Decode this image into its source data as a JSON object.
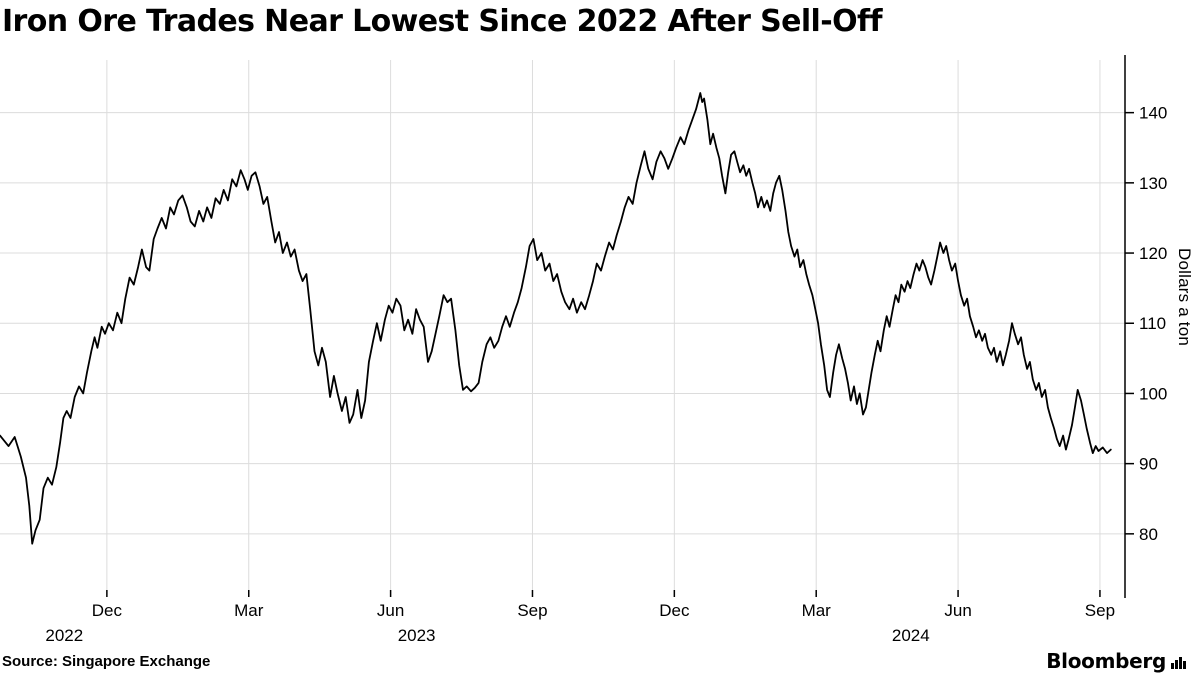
{
  "page": {
    "title": "Iron Ore Trades Near Lowest Since 2022 After Sell-Off",
    "source_label": "Source: Singapore Exchange",
    "brand": "Bloomberg"
  },
  "chart_data": {
    "type": "line",
    "title": "Iron Ore Trades Near Lowest Since 2022 After Sell-Off",
    "ylabel": "Dollars a ton",
    "x_unit": "months since 2022-10-01 (0 = Oct 2022, 23 = Sep 2024)",
    "xlim": [
      -0.26,
      23.53
    ],
    "ylim": [
      72,
      147.5
    ],
    "yticks": [
      80,
      90,
      100,
      110,
      120,
      130,
      140
    ],
    "xticks": [
      {
        "t": 2,
        "label": "Dec"
      },
      {
        "t": 5,
        "label": "Mar"
      },
      {
        "t": 8,
        "label": "Jun"
      },
      {
        "t": 11,
        "label": "Sep"
      },
      {
        "t": 14,
        "label": "Dec"
      },
      {
        "t": 17,
        "label": "Mar"
      },
      {
        "t": 20,
        "label": "Jun"
      },
      {
        "t": 23,
        "label": "Sep"
      }
    ],
    "year_labels": [
      {
        "t": 1.1,
        "label": "2022"
      },
      {
        "t": 8.55,
        "label": "2023"
      },
      {
        "t": 19.0,
        "label": "2024"
      }
    ],
    "grid": true,
    "legend": "none",
    "line_color": "#000000",
    "grid_color": "#dcdcdc",
    "axis_color": "#000000",
    "background": "#ffffff",
    "points": [
      [
        -0.26,
        94
      ],
      [
        -0.08,
        92.5
      ],
      [
        0.05,
        93.8
      ],
      [
        0.18,
        91
      ],
      [
        0.29,
        88
      ],
      [
        0.36,
        84
      ],
      [
        0.42,
        78.6
      ],
      [
        0.49,
        80.5
      ],
      [
        0.58,
        82
      ],
      [
        0.66,
        86.5
      ],
      [
        0.75,
        88
      ],
      [
        0.84,
        87
      ],
      [
        0.93,
        89.5
      ],
      [
        1.01,
        93
      ],
      [
        1.08,
        96.5
      ],
      [
        1.15,
        97.5
      ],
      [
        1.23,
        96.5
      ],
      [
        1.32,
        99.5
      ],
      [
        1.41,
        101
      ],
      [
        1.5,
        100
      ],
      [
        1.58,
        103
      ],
      [
        1.67,
        106
      ],
      [
        1.74,
        108
      ],
      [
        1.8,
        106.5
      ],
      [
        1.89,
        109.5
      ],
      [
        1.96,
        108.5
      ],
      [
        2.04,
        110
      ],
      [
        2.13,
        109
      ],
      [
        2.22,
        111.5
      ],
      [
        2.31,
        110
      ],
      [
        2.39,
        113.5
      ],
      [
        2.48,
        116.5
      ],
      [
        2.57,
        115.5
      ],
      [
        2.66,
        118
      ],
      [
        2.74,
        120.5
      ],
      [
        2.83,
        118
      ],
      [
        2.9,
        117.5
      ],
      [
        2.99,
        122
      ],
      [
        3.07,
        123.5
      ],
      [
        3.16,
        125
      ],
      [
        3.25,
        123.5
      ],
      [
        3.34,
        126.5
      ],
      [
        3.42,
        125.5
      ],
      [
        3.51,
        127.5
      ],
      [
        3.6,
        128.2
      ],
      [
        3.69,
        126.5
      ],
      [
        3.77,
        124.5
      ],
      [
        3.86,
        123.8
      ],
      [
        3.95,
        126
      ],
      [
        4.04,
        124.5
      ],
      [
        4.12,
        126.5
      ],
      [
        4.21,
        125
      ],
      [
        4.3,
        127.8
      ],
      [
        4.39,
        127
      ],
      [
        4.47,
        129
      ],
      [
        4.56,
        127.5
      ],
      [
        4.65,
        130.5
      ],
      [
        4.74,
        129.5
      ],
      [
        4.83,
        131.8
      ],
      [
        4.91,
        130.5
      ],
      [
        4.98,
        129
      ],
      [
        5.06,
        131
      ],
      [
        5.14,
        131.5
      ],
      [
        5.23,
        129.5
      ],
      [
        5.31,
        127
      ],
      [
        5.39,
        128
      ],
      [
        5.48,
        124.5
      ],
      [
        5.56,
        121.5
      ],
      [
        5.64,
        123
      ],
      [
        5.72,
        120
      ],
      [
        5.81,
        121.5
      ],
      [
        5.89,
        119.5
      ],
      [
        5.97,
        120.5
      ],
      [
        6.06,
        117.5
      ],
      [
        6.14,
        116
      ],
      [
        6.22,
        117
      ],
      [
        6.3,
        112
      ],
      [
        6.39,
        106
      ],
      [
        6.47,
        104
      ],
      [
        6.55,
        106.5
      ],
      [
        6.63,
        104.5
      ],
      [
        6.72,
        99.5
      ],
      [
        6.8,
        102.5
      ],
      [
        6.88,
        100
      ],
      [
        6.97,
        97.5
      ],
      [
        7.05,
        99.5
      ],
      [
        7.13,
        95.8
      ],
      [
        7.21,
        97
      ],
      [
        7.3,
        100.5
      ],
      [
        7.38,
        96.5
      ],
      [
        7.46,
        99
      ],
      [
        7.54,
        104.5
      ],
      [
        7.63,
        107.5
      ],
      [
        7.71,
        110
      ],
      [
        7.79,
        107.5
      ],
      [
        7.88,
        110.5
      ],
      [
        7.96,
        112.5
      ],
      [
        8.04,
        111.5
      ],
      [
        8.12,
        113.5
      ],
      [
        8.21,
        112.5
      ],
      [
        8.29,
        109
      ],
      [
        8.37,
        110.5
      ],
      [
        8.46,
        108.5
      ],
      [
        8.54,
        112
      ],
      [
        8.62,
        110.5
      ],
      [
        8.7,
        109.5
      ],
      [
        8.79,
        104.5
      ],
      [
        8.87,
        106
      ],
      [
        8.95,
        108.5
      ],
      [
        9.03,
        111
      ],
      [
        9.12,
        114
      ],
      [
        9.2,
        113
      ],
      [
        9.28,
        113.5
      ],
      [
        9.37,
        109
      ],
      [
        9.45,
        104
      ],
      [
        9.53,
        100.5
      ],
      [
        9.61,
        101
      ],
      [
        9.7,
        100.3
      ],
      [
        9.78,
        100.8
      ],
      [
        9.86,
        101.5
      ],
      [
        9.94,
        104.5
      ],
      [
        10.03,
        107
      ],
      [
        10.11,
        108
      ],
      [
        10.19,
        106.5
      ],
      [
        10.28,
        107.5
      ],
      [
        10.36,
        109.5
      ],
      [
        10.44,
        111
      ],
      [
        10.52,
        109.5
      ],
      [
        10.61,
        111.5
      ],
      [
        10.69,
        113
      ],
      [
        10.77,
        115
      ],
      [
        10.86,
        118
      ],
      [
        10.94,
        121
      ],
      [
        11.02,
        122
      ],
      [
        11.1,
        119
      ],
      [
        11.19,
        120
      ],
      [
        11.27,
        117.5
      ],
      [
        11.36,
        118.5
      ],
      [
        11.44,
        116
      ],
      [
        11.52,
        117
      ],
      [
        11.61,
        114.5
      ],
      [
        11.69,
        113
      ],
      [
        11.78,
        112
      ],
      [
        11.86,
        113.5
      ],
      [
        11.94,
        111.5
      ],
      [
        12.03,
        113
      ],
      [
        12.11,
        112
      ],
      [
        12.2,
        114
      ],
      [
        12.28,
        116
      ],
      [
        12.36,
        118.5
      ],
      [
        12.45,
        117.5
      ],
      [
        12.53,
        119.5
      ],
      [
        12.62,
        121.5
      ],
      [
        12.7,
        120.5
      ],
      [
        12.78,
        122.5
      ],
      [
        12.87,
        124.5
      ],
      [
        12.95,
        126.5
      ],
      [
        13.03,
        128
      ],
      [
        13.12,
        127
      ],
      [
        13.2,
        130
      ],
      [
        13.29,
        132.5
      ],
      [
        13.37,
        134.5
      ],
      [
        13.45,
        132
      ],
      [
        13.54,
        130.5
      ],
      [
        13.62,
        133
      ],
      [
        13.71,
        134.5
      ],
      [
        13.79,
        133.5
      ],
      [
        13.87,
        132
      ],
      [
        13.96,
        133.5
      ],
      [
        14.04,
        135
      ],
      [
        14.13,
        136.5
      ],
      [
        14.21,
        135.5
      ],
      [
        14.3,
        137.5
      ],
      [
        14.38,
        139
      ],
      [
        14.46,
        140.5
      ],
      [
        14.55,
        142.8
      ],
      [
        14.59,
        141.5
      ],
      [
        14.63,
        142
      ],
      [
        14.7,
        139
      ],
      [
        14.76,
        135.5
      ],
      [
        14.82,
        137
      ],
      [
        14.89,
        135
      ],
      [
        14.95,
        133.5
      ],
      [
        15.01,
        131
      ],
      [
        15.08,
        128.5
      ],
      [
        15.14,
        131.5
      ],
      [
        15.2,
        134
      ],
      [
        15.27,
        134.5
      ],
      [
        15.33,
        133
      ],
      [
        15.39,
        131.5
      ],
      [
        15.46,
        132.5
      ],
      [
        15.52,
        131
      ],
      [
        15.58,
        132
      ],
      [
        15.65,
        130
      ],
      [
        15.71,
        128.5
      ],
      [
        15.77,
        126.5
      ],
      [
        15.84,
        128
      ],
      [
        15.9,
        126.5
      ],
      [
        15.96,
        127.5
      ],
      [
        16.03,
        126
      ],
      [
        16.09,
        128.5
      ],
      [
        16.15,
        130
      ],
      [
        16.22,
        131
      ],
      [
        16.28,
        129
      ],
      [
        16.35,
        126
      ],
      [
        16.41,
        123
      ],
      [
        16.47,
        121
      ],
      [
        16.54,
        119.5
      ],
      [
        16.6,
        120.5
      ],
      [
        16.66,
        118
      ],
      [
        16.73,
        119
      ],
      [
        16.79,
        117
      ],
      [
        16.85,
        115.5
      ],
      [
        16.92,
        114
      ],
      [
        16.98,
        112
      ],
      [
        17.04,
        110
      ],
      [
        17.1,
        107
      ],
      [
        17.17,
        104
      ],
      [
        17.23,
        100.5
      ],
      [
        17.29,
        99.5
      ],
      [
        17.36,
        103
      ],
      [
        17.42,
        105.5
      ],
      [
        17.48,
        107
      ],
      [
        17.55,
        105
      ],
      [
        17.61,
        103.5
      ],
      [
        17.67,
        101.5
      ],
      [
        17.73,
        99
      ],
      [
        17.8,
        101
      ],
      [
        17.86,
        98.5
      ],
      [
        17.92,
        100
      ],
      [
        17.99,
        97
      ],
      [
        18.05,
        98
      ],
      [
        18.11,
        100.5
      ],
      [
        18.17,
        103
      ],
      [
        18.24,
        105.5
      ],
      [
        18.3,
        107.5
      ],
      [
        18.36,
        106
      ],
      [
        18.43,
        109
      ],
      [
        18.49,
        111
      ],
      [
        18.55,
        109.5
      ],
      [
        18.62,
        112
      ],
      [
        18.68,
        114
      ],
      [
        18.74,
        113
      ],
      [
        18.8,
        115.5
      ],
      [
        18.87,
        114.5
      ],
      [
        18.93,
        116
      ],
      [
        18.99,
        115
      ],
      [
        19.06,
        117
      ],
      [
        19.12,
        118.5
      ],
      [
        19.18,
        117.5
      ],
      [
        19.25,
        119
      ],
      [
        19.31,
        118
      ],
      [
        19.37,
        116.5
      ],
      [
        19.43,
        115.5
      ],
      [
        19.5,
        117.5
      ],
      [
        19.56,
        119.5
      ],
      [
        19.62,
        121.5
      ],
      [
        19.69,
        120
      ],
      [
        19.75,
        121
      ],
      [
        19.81,
        119
      ],
      [
        19.87,
        117.5
      ],
      [
        19.94,
        118.5
      ],
      [
        20.0,
        116
      ],
      [
        20.06,
        114
      ],
      [
        20.13,
        112.5
      ],
      [
        20.19,
        113.5
      ],
      [
        20.25,
        111
      ],
      [
        20.32,
        109.5
      ],
      [
        20.38,
        108
      ],
      [
        20.44,
        109
      ],
      [
        20.51,
        107.5
      ],
      [
        20.57,
        108.5
      ],
      [
        20.63,
        106.5
      ],
      [
        20.7,
        105.5
      ],
      [
        20.76,
        106.5
      ],
      [
        20.82,
        104.5
      ],
      [
        20.89,
        106
      ],
      [
        20.95,
        104
      ],
      [
        21.01,
        105.5
      ],
      [
        21.08,
        107.5
      ],
      [
        21.14,
        110
      ],
      [
        21.2,
        108.5
      ],
      [
        21.27,
        107
      ],
      [
        21.33,
        108
      ],
      [
        21.39,
        105.5
      ],
      [
        21.46,
        103.5
      ],
      [
        21.52,
        104.5
      ],
      [
        21.58,
        102
      ],
      [
        21.65,
        100.5
      ],
      [
        21.71,
        101.5
      ],
      [
        21.77,
        99.5
      ],
      [
        21.84,
        100.5
      ],
      [
        21.9,
        98
      ],
      [
        21.96,
        96.5
      ],
      [
        22.03,
        95
      ],
      [
        22.09,
        93.5
      ],
      [
        22.15,
        92.5
      ],
      [
        22.22,
        94
      ],
      [
        22.28,
        92
      ],
      [
        22.34,
        93.5
      ],
      [
        22.41,
        95.5
      ],
      [
        22.47,
        98
      ],
      [
        22.53,
        100.5
      ],
      [
        22.6,
        99
      ],
      [
        22.66,
        97
      ],
      [
        22.72,
        95
      ],
      [
        22.79,
        93
      ],
      [
        22.85,
        91.5
      ],
      [
        22.91,
        92.5
      ],
      [
        22.97,
        91.8
      ],
      [
        23.06,
        92.3
      ],
      [
        23.15,
        91.5
      ],
      [
        23.23,
        92
      ]
    ]
  }
}
